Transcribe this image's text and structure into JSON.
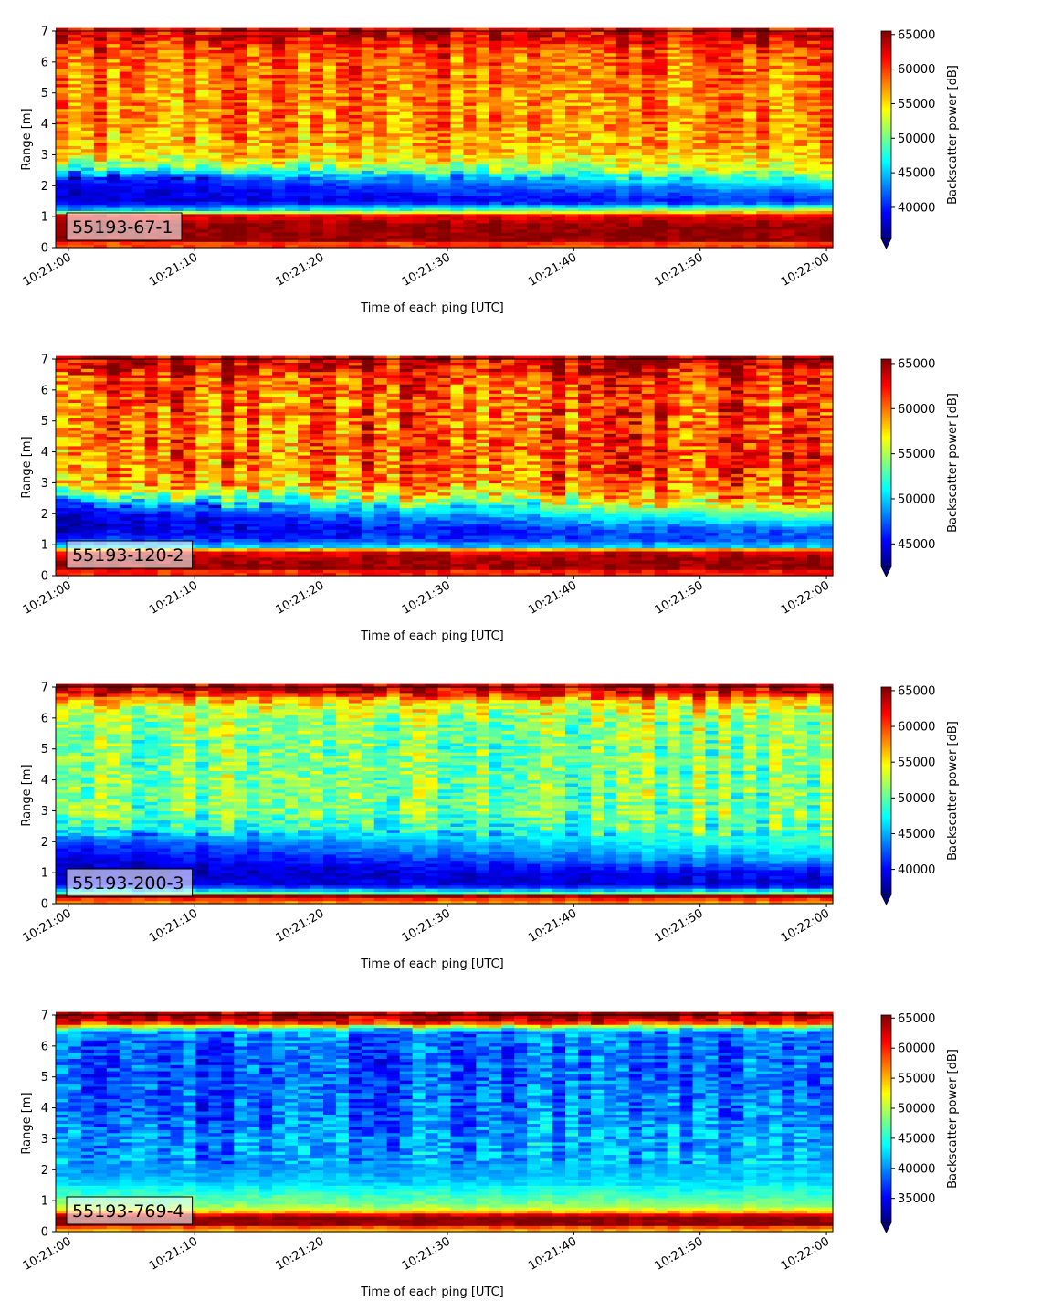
{
  "chart_data": [
    {
      "type": "heatmap",
      "badge": "55193-67-1",
      "xlabel": "Time of each ping [UTC]",
      "ylabel": "Range [m]",
      "ylim": [
        0,
        7
      ],
      "xlim": [
        "10:20:59.0",
        "10:22:00.5"
      ],
      "x_ticks": [
        "10:21:00",
        "10:21:10",
        "10:21:20",
        "10:21:30",
        "10:21:40",
        "10:21:50",
        "10:22:00"
      ],
      "y_ticks": [
        0,
        1,
        2,
        3,
        4,
        5,
        6,
        7
      ],
      "colormap": "jet",
      "colorbar_label": "Backscatter power [dB]",
      "clim": [
        35500,
        65500
      ],
      "colorbar_ticks": [
        40000,
        45000,
        50000,
        55000,
        60000,
        65000
      ],
      "colorbar_extend": "min",
      "profile": {
        "range_m": [
          0.15,
          0.25,
          0.45,
          0.75,
          1.05,
          1.2,
          1.5,
          1.9,
          2.3,
          2.6,
          3.0,
          4.0,
          5.0,
          6.0,
          6.5,
          6.8,
          7.0
        ],
        "power_start": [
          60000,
          65000,
          65000,
          65000,
          62000,
          45000,
          38000,
          38000,
          40000,
          50000,
          56000,
          58000,
          58000,
          59000,
          60000,
          63000,
          63000
        ],
        "power_end": [
          60000,
          65000,
          65000,
          65000,
          62000,
          54000,
          40000,
          44000,
          50000,
          54000,
          56000,
          58000,
          58000,
          59000,
          60000,
          63000,
          63000
        ]
      }
    },
    {
      "type": "heatmap",
      "badge": "55193-120-2",
      "xlabel": "Time of each ping [UTC]",
      "ylabel": "Range [m]",
      "ylim": [
        0,
        7
      ],
      "xlim": [
        "10:20:59.0",
        "10:22:00.5"
      ],
      "x_ticks": [
        "10:21:00",
        "10:21:10",
        "10:21:20",
        "10:21:30",
        "10:21:40",
        "10:21:50",
        "10:22:00"
      ],
      "y_ticks": [
        0,
        1,
        2,
        3,
        4,
        5,
        6,
        7
      ],
      "colormap": "jet",
      "colorbar_label": "Backscatter power [dB]",
      "clim": [
        42500,
        65500
      ],
      "colorbar_ticks": [
        45000,
        50000,
        55000,
        60000,
        65000
      ],
      "colorbar_extend": "min",
      "profile": {
        "range_m": [
          0.15,
          0.25,
          0.5,
          0.8,
          0.95,
          1.2,
          1.5,
          1.9,
          2.3,
          2.6,
          3.0,
          4.0,
          5.0,
          6.0,
          6.5,
          6.8,
          7.0
        ],
        "power_start": [
          62000,
          65000,
          65000,
          63000,
          50000,
          46000,
          44000,
          44000,
          47000,
          54000,
          59000,
          60000,
          60000,
          61000,
          62000,
          64000,
          64000
        ],
        "power_end": [
          62000,
          65000,
          65000,
          63000,
          50000,
          47000,
          48000,
          53000,
          58000,
          60000,
          61000,
          62000,
          61000,
          61000,
          62000,
          64000,
          64000
        ]
      }
    },
    {
      "type": "heatmap",
      "badge": "55193-200-3",
      "xlabel": "Time of each ping [UTC]",
      "ylabel": "Range [m]",
      "ylim": [
        0,
        7
      ],
      "xlim": [
        "10:20:59.0",
        "10:22:00.5"
      ],
      "x_ticks": [
        "10:21:00",
        "10:21:10",
        "10:21:20",
        "10:21:30",
        "10:21:40",
        "10:21:50",
        "10:22:00"
      ],
      "y_ticks": [
        0,
        1,
        2,
        3,
        4,
        5,
        6,
        7
      ],
      "colormap": "jet",
      "colorbar_label": "Backscatter power [dB]",
      "clim": [
        36500,
        65500
      ],
      "colorbar_ticks": [
        40000,
        45000,
        50000,
        55000,
        60000,
        65000
      ],
      "colorbar_extend": "min",
      "profile": {
        "range_m": [
          0.1,
          0.25,
          0.35,
          0.6,
          1.0,
          1.5,
          2.0,
          2.5,
          3.0,
          4.0,
          5.0,
          6.0,
          6.5,
          6.8,
          7.0
        ],
        "power_start": [
          58000,
          65000,
          50000,
          40000,
          38000,
          39000,
          42000,
          48000,
          51000,
          51000,
          51000,
          52000,
          55000,
          62000,
          64000
        ],
        "power_end": [
          58000,
          65000,
          50000,
          39000,
          40000,
          46000,
          49000,
          50000,
          51000,
          51000,
          51000,
          52000,
          55000,
          62000,
          64000
        ]
      }
    },
    {
      "type": "heatmap",
      "badge": "55193-769-4",
      "xlabel": "Time of each ping [UTC]",
      "ylabel": "Range [m]",
      "ylim": [
        0,
        7
      ],
      "xlim": [
        "10:20:59.0",
        "10:22:00.5"
      ],
      "x_ticks": [
        "10:21:00",
        "10:21:10",
        "10:21:20",
        "10:21:30",
        "10:21:40",
        "10:21:50",
        "10:22:00"
      ],
      "y_ticks": [
        0,
        1,
        2,
        3,
        4,
        5,
        6,
        7
      ],
      "colormap": "jet",
      "colorbar_label": "Backscatter power [dB]",
      "clim": [
        31000,
        65500
      ],
      "colorbar_ticks": [
        35000,
        40000,
        45000,
        50000,
        55000,
        60000,
        65000
      ],
      "colorbar_extend": "min",
      "profile": {
        "range_m": [
          0.1,
          0.25,
          0.5,
          0.7,
          0.9,
          1.2,
          1.6,
          2.0,
          3.0,
          4.0,
          5.0,
          6.0,
          6.5,
          6.8,
          7.0
        ],
        "power_start": [
          55000,
          65000,
          65000,
          52000,
          48000,
          46000,
          42000,
          40000,
          40000,
          38000,
          38000,
          38000,
          40000,
          63000,
          64000
        ],
        "power_end": [
          55000,
          65000,
          65000,
          52000,
          48000,
          46000,
          43000,
          42000,
          41000,
          40000,
          39000,
          39000,
          40000,
          63000,
          64000
        ]
      }
    }
  ]
}
